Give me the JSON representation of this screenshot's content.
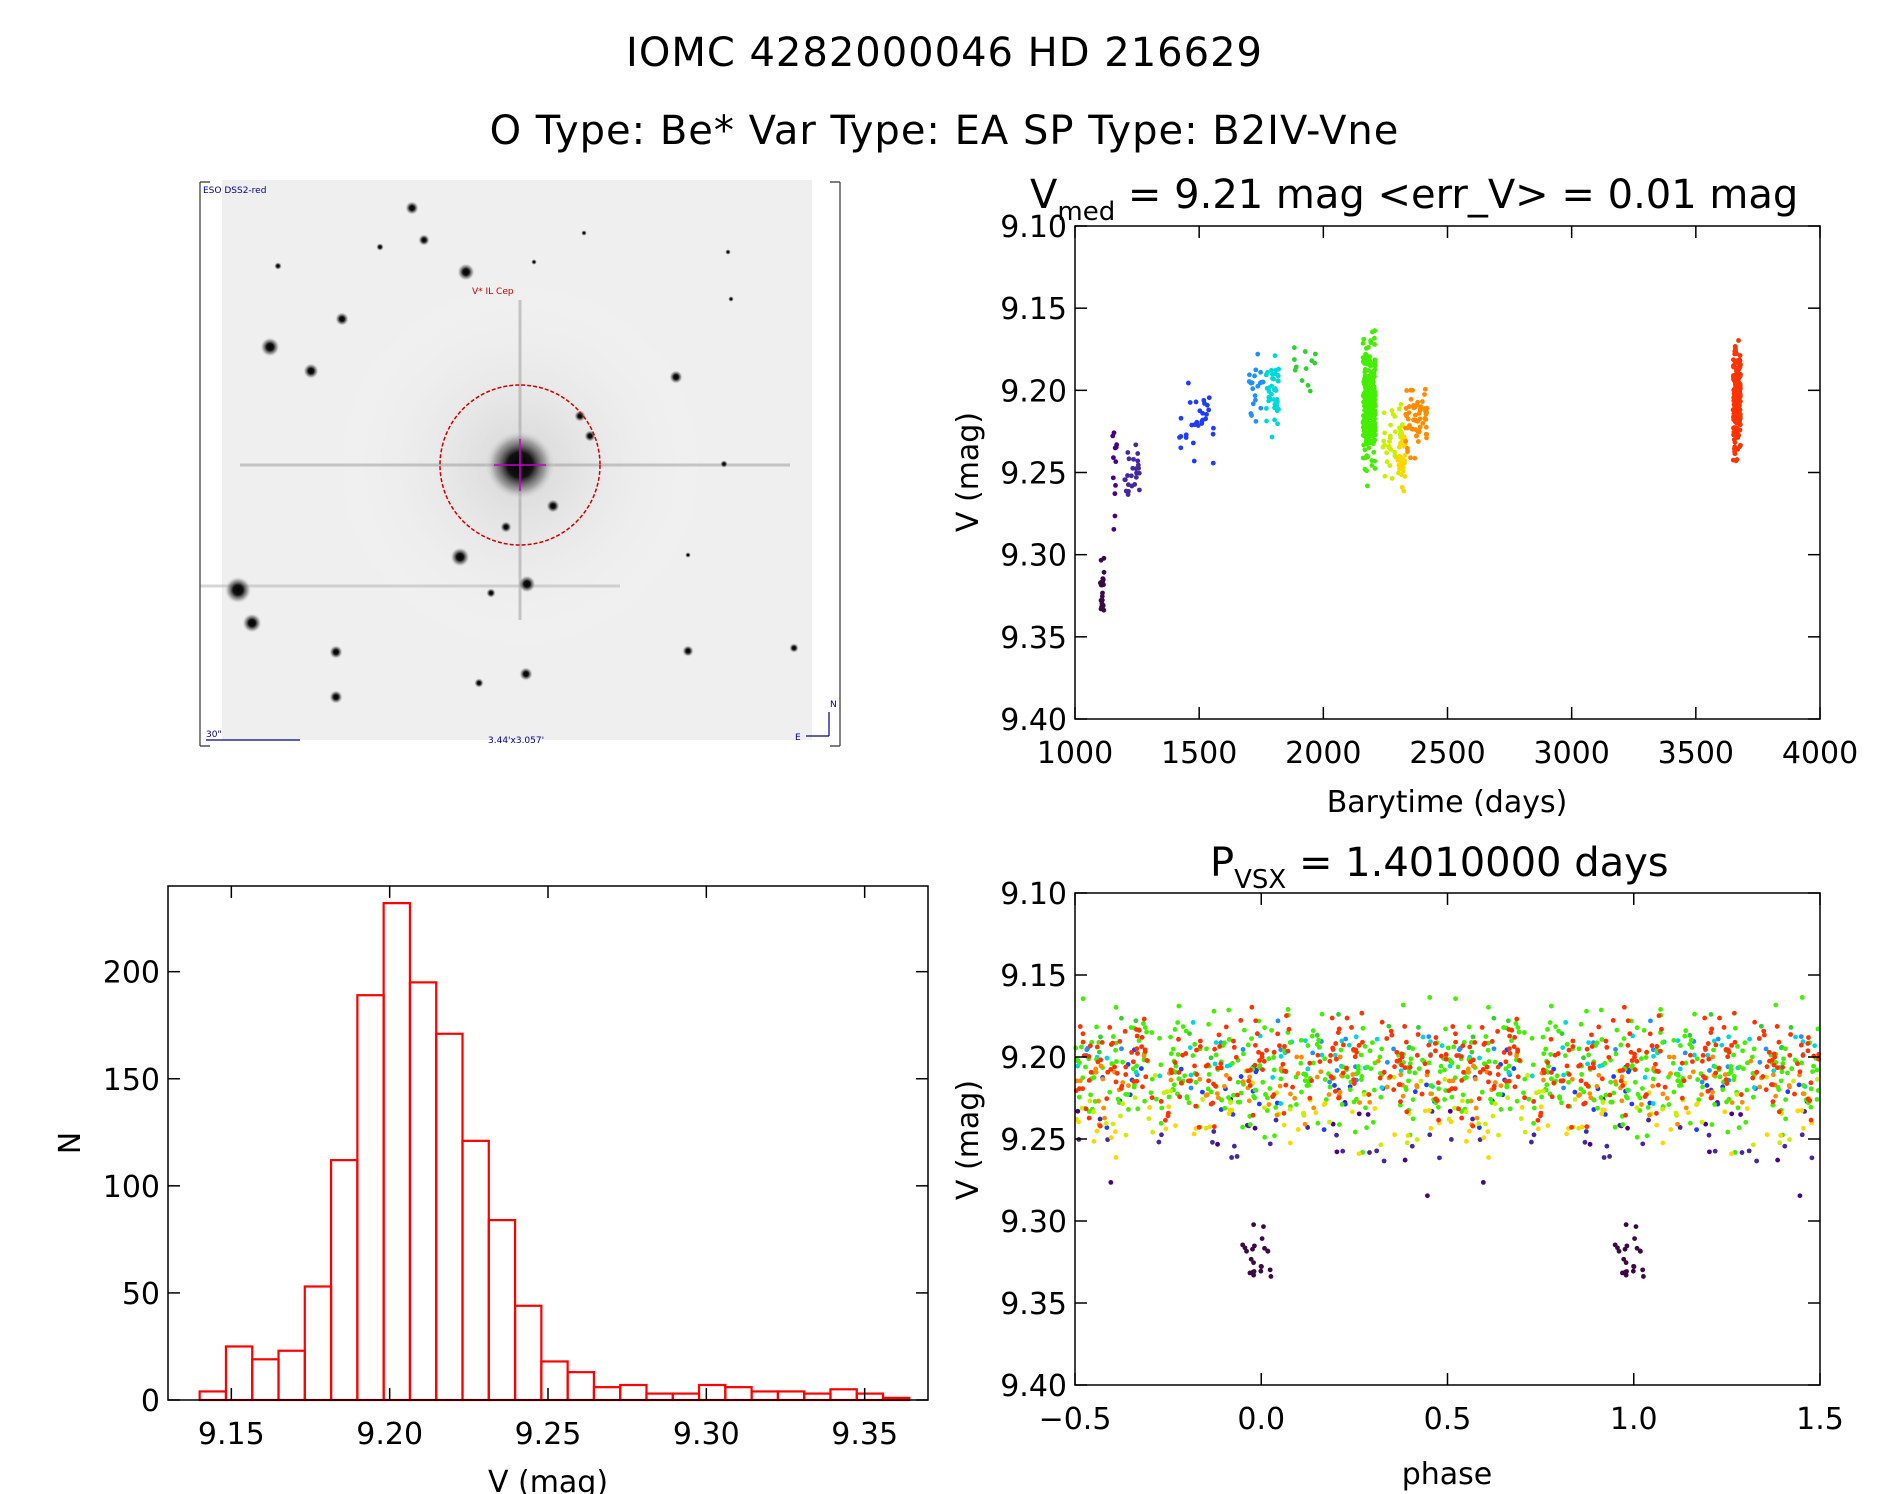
{
  "header": {
    "line1": "IOMC 4282000046    HD 216629",
    "line2": "O Type: Be*  Var Type: EA  SP Type: B2IV-Vne"
  },
  "image_panel": {
    "survey_label": "ESO DSS2-red",
    "target_label": "V* IL Cep",
    "scale_label": "30\"",
    "size_label": "3.44'x3.057'",
    "compass_n": "N",
    "compass_e": "E"
  },
  "colors": {
    "histogram": "#ff0000",
    "marker_circle": "#cc0000",
    "crosshair": "#cc00cc",
    "label_blue": "#00008b"
  },
  "chart_data": [
    {
      "id": "lightcurve",
      "type": "scatter",
      "title_main": "V",
      "title_sub": "med",
      "title_rest": " = 9.21 mag <err_V> = 0.01 mag",
      "xlabel": "Barytime (days)",
      "ylabel": "V (mag)",
      "xlim": [
        1000,
        4000
      ],
      "ylim": [
        9.4,
        9.1
      ],
      "x_ticks": [
        1000,
        1500,
        2000,
        2500,
        3000,
        3500,
        4000
      ],
      "x_tick_labels": [
        "1000",
        "1500",
        "2000",
        "2500",
        "3000",
        "3500",
        "4000"
      ],
      "y_ticks": [
        9.1,
        9.15,
        9.2,
        9.25,
        9.3,
        9.35,
        9.4
      ],
      "y_tick_labels": [
        "9.10",
        "9.15",
        "9.20",
        "9.25",
        "9.30",
        "9.35",
        "9.40"
      ],
      "groups": [
        {
          "t": [
            1100,
            1120
          ],
          "center": 9.32,
          "spread": 0.035,
          "n": 22,
          "color": "#3b0a45"
        },
        {
          "t": [
            1150,
            1170
          ],
          "center": 9.25,
          "spread": 0.05,
          "n": 12,
          "color": "#4b0082"
        },
        {
          "t": [
            1195,
            1260
          ],
          "center": 9.25,
          "spread": 0.025,
          "n": 24,
          "color": "#4527a0"
        },
        {
          "t": [
            1420,
            1560
          ],
          "center": 9.22,
          "spread": 0.035,
          "n": 30,
          "color": "#1e3cff"
        },
        {
          "t": [
            1700,
            1760
          ],
          "center": 9.2,
          "spread": 0.035,
          "n": 20,
          "color": "#1e90ff"
        },
        {
          "t": [
            1770,
            1820
          ],
          "center": 9.2,
          "spread": 0.04,
          "n": 40,
          "color": "#00d8d8"
        },
        {
          "t": [
            1880,
            1980
          ],
          "center": 9.19,
          "spread": 0.025,
          "n": 12,
          "color": "#30d030"
        },
        {
          "t": [
            2160,
            2210
          ],
          "center": 9.21,
          "spread": 0.06,
          "n": 260,
          "color": "#44ee00"
        },
        {
          "t": [
            2240,
            2320
          ],
          "center": 9.23,
          "spread": 0.035,
          "n": 40,
          "color": "#ccee00"
        },
        {
          "t": [
            2300,
            2330
          ],
          "center": 9.24,
          "spread": 0.03,
          "n": 30,
          "color": "#ffd700"
        },
        {
          "t": [
            2330,
            2420
          ],
          "center": 9.215,
          "spread": 0.035,
          "n": 60,
          "color": "#ff8c00"
        },
        {
          "t": [
            3650,
            3680
          ],
          "center": 9.205,
          "spread": 0.05,
          "n": 200,
          "color": "#ff3300"
        }
      ]
    },
    {
      "id": "histogram",
      "type": "bar",
      "xlabel": "V (mag)",
      "ylabel": "N",
      "xlim": [
        9.13,
        9.37
      ],
      "ylim": [
        0,
        240
      ],
      "bin_start": 9.14,
      "bin_width": 0.0083,
      "values": [
        4,
        25,
        19,
        23,
        53,
        112,
        189,
        232,
        195,
        171,
        121,
        84,
        44,
        18,
        13,
        6,
        7,
        3,
        3,
        7,
        6,
        4,
        4,
        3,
        5,
        3,
        1
      ],
      "x_ticks": [
        9.15,
        9.2,
        9.25,
        9.3,
        9.35
      ],
      "x_tick_labels": [
        "9.15",
        "9.20",
        "9.25",
        "9.30",
        "9.35"
      ],
      "y_ticks": [
        0,
        50,
        100,
        150,
        200
      ],
      "y_tick_labels": [
        "0",
        "50",
        "100",
        "150",
        "200"
      ]
    },
    {
      "id": "phased",
      "type": "scatter",
      "title_main": "P",
      "title_sub": "VSX",
      "title_rest": " = 1.4010000 days",
      "xlabel": "phase",
      "ylabel": "V (mag)",
      "xlim": [
        -0.5,
        1.5
      ],
      "ylim": [
        9.4,
        9.1
      ],
      "x_ticks": [
        -0.5,
        0.0,
        0.5,
        1.0,
        1.5
      ],
      "x_tick_labels": [
        "−0.5",
        "0.0",
        "0.5",
        "1.0",
        "1.5"
      ],
      "y_ticks": [
        9.1,
        9.15,
        9.2,
        9.25,
        9.3,
        9.35,
        9.4
      ],
      "y_tick_labels": [
        "9.10",
        "9.15",
        "9.20",
        "9.25",
        "9.30",
        "9.35",
        "9.40"
      ],
      "period_days": 1.401
    }
  ]
}
